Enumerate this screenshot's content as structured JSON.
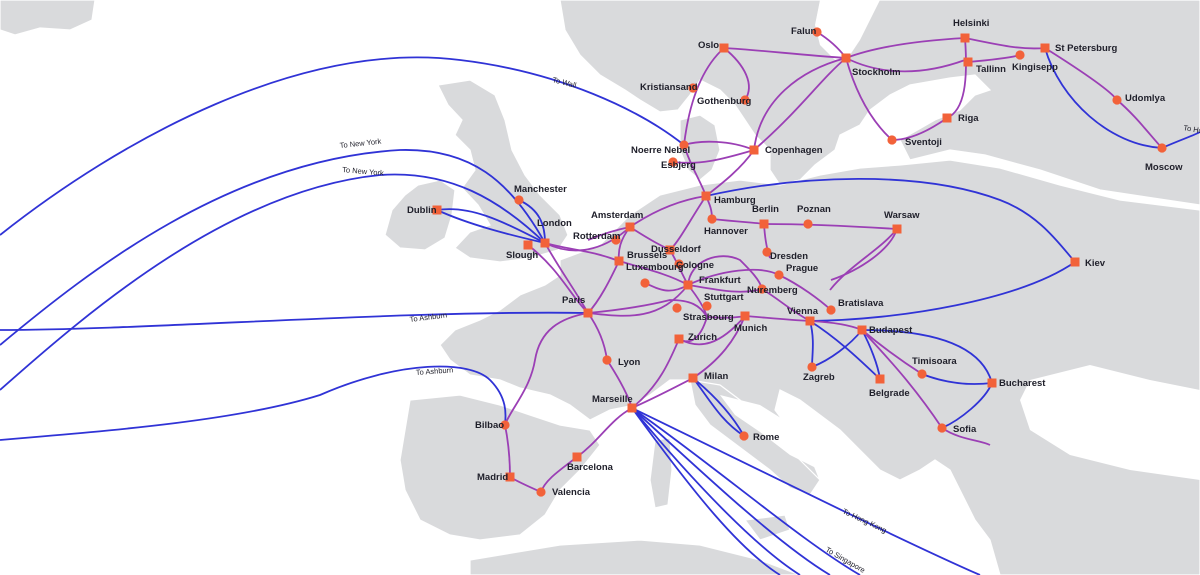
{
  "colors": {
    "land": "#d9dadc",
    "sea": "#ffffff",
    "long_haul": "#3033d6",
    "terrestrial": "#9b3fb5",
    "node": "#f2623a"
  },
  "cities": [
    {
      "id": "oslo",
      "name": "Oslo",
      "type": "square"
    },
    {
      "id": "falun",
      "name": "Falun",
      "type": "circle"
    },
    {
      "id": "helsinki",
      "name": "Helsinki",
      "type": "square"
    },
    {
      "id": "stpetersburg",
      "name": "St Petersburg",
      "type": "square"
    },
    {
      "id": "stockholm",
      "name": "Stockholm",
      "type": "square"
    },
    {
      "id": "tallinn",
      "name": "Tallinn",
      "type": "square"
    },
    {
      "id": "kingisepp",
      "name": "Kingisepp",
      "type": "circle"
    },
    {
      "id": "kristiansand",
      "name": "Kristiansand",
      "type": "circle"
    },
    {
      "id": "gothenburg",
      "name": "Gothenburg",
      "type": "circle"
    },
    {
      "id": "udomlya",
      "name": "Udomlya",
      "type": "circle"
    },
    {
      "id": "riga",
      "name": "Riga",
      "type": "square"
    },
    {
      "id": "noerrenebel",
      "name": "Noerre Nebel",
      "type": "circle"
    },
    {
      "id": "copenhagen",
      "name": "Copenhagen",
      "type": "square"
    },
    {
      "id": "sventoji",
      "name": "Sventoji",
      "type": "circle"
    },
    {
      "id": "esbjerg",
      "name": "Esbjerg",
      "type": "circle"
    },
    {
      "id": "moscow",
      "name": "Moscow",
      "type": "circle"
    },
    {
      "id": "manchester",
      "name": "Manchester",
      "type": "circle"
    },
    {
      "id": "hamburg",
      "name": "Hamburg",
      "type": "square"
    },
    {
      "id": "dublin",
      "name": "Dublin",
      "type": "square"
    },
    {
      "id": "amsterdam",
      "name": "Amsterdam",
      "type": "square"
    },
    {
      "id": "berlin",
      "name": "Berlin",
      "type": "square"
    },
    {
      "id": "poznan",
      "name": "Poznan",
      "type": "circle"
    },
    {
      "id": "warsaw",
      "name": "Warsaw",
      "type": "square"
    },
    {
      "id": "london",
      "name": "London",
      "type": "square"
    },
    {
      "id": "hannover",
      "name": "Hannover",
      "type": "circle"
    },
    {
      "id": "rotterdam",
      "name": "Rotterdam",
      "type": "circle"
    },
    {
      "id": "slough",
      "name": "Slough",
      "type": "square"
    },
    {
      "id": "brussels",
      "name": "Brussels",
      "type": "square"
    },
    {
      "id": "dusseldorf",
      "name": "Dusseldorf",
      "type": "square"
    },
    {
      "id": "dresden",
      "name": "Dresden",
      "type": "circle"
    },
    {
      "id": "cologne",
      "name": "Cologne",
      "type": "circle"
    },
    {
      "id": "kiev",
      "name": "Kiev",
      "type": "square"
    },
    {
      "id": "luxembourg",
      "name": "Luxembourg",
      "type": "circle"
    },
    {
      "id": "prague",
      "name": "Prague",
      "type": "circle"
    },
    {
      "id": "frankfurt",
      "name": "Frankfurt",
      "type": "square"
    },
    {
      "id": "nuremberg",
      "name": "Nuremberg",
      "type": "circle"
    },
    {
      "id": "stuttgart",
      "name": "Stuttgart",
      "type": "circle"
    },
    {
      "id": "bratislava",
      "name": "Bratislava",
      "type": "circle"
    },
    {
      "id": "paris",
      "name": "Paris",
      "type": "square"
    },
    {
      "id": "strasbourg",
      "name": "Strasbourg",
      "type": "circle"
    },
    {
      "id": "vienna",
      "name": "Vienna",
      "type": "square"
    },
    {
      "id": "munich",
      "name": "Munich",
      "type": "square"
    },
    {
      "id": "budapest",
      "name": "Budapest",
      "type": "square"
    },
    {
      "id": "zurich",
      "name": "Zurich",
      "type": "square"
    },
    {
      "id": "lyon",
      "name": "Lyon",
      "type": "circle"
    },
    {
      "id": "timisoara",
      "name": "Timisoara",
      "type": "circle"
    },
    {
      "id": "zagreb",
      "name": "Zagreb",
      "type": "circle"
    },
    {
      "id": "milan",
      "name": "Milan",
      "type": "square"
    },
    {
      "id": "bucharest",
      "name": "Bucharest",
      "type": "square"
    },
    {
      "id": "belgrade",
      "name": "Belgrade",
      "type": "square"
    },
    {
      "id": "marseille",
      "name": "Marseille",
      "type": "square"
    },
    {
      "id": "rome",
      "name": "Rome",
      "type": "circle"
    },
    {
      "id": "bilbao",
      "name": "Bilbao",
      "type": "circle"
    },
    {
      "id": "sofia",
      "name": "Sofia",
      "type": "circle"
    },
    {
      "id": "barcelona",
      "name": "Barcelona",
      "type": "square"
    },
    {
      "id": "madrid",
      "name": "Madrid",
      "type": "square"
    },
    {
      "id": "valencia",
      "name": "Valencia",
      "type": "circle"
    }
  ],
  "cable_labels": [
    {
      "id": "wall",
      "text": "To Wall"
    },
    {
      "id": "ny1",
      "text": "To New York"
    },
    {
      "id": "ny2",
      "text": "To New York"
    },
    {
      "id": "ashburn1",
      "text": "To Ashburn"
    },
    {
      "id": "ashburn2",
      "text": "To Ashburn"
    },
    {
      "id": "hongkong",
      "text": "To Hong Kong"
    },
    {
      "id": "singapore",
      "text": "To Singapore"
    },
    {
      "id": "ho",
      "text": "To Ho"
    }
  ]
}
